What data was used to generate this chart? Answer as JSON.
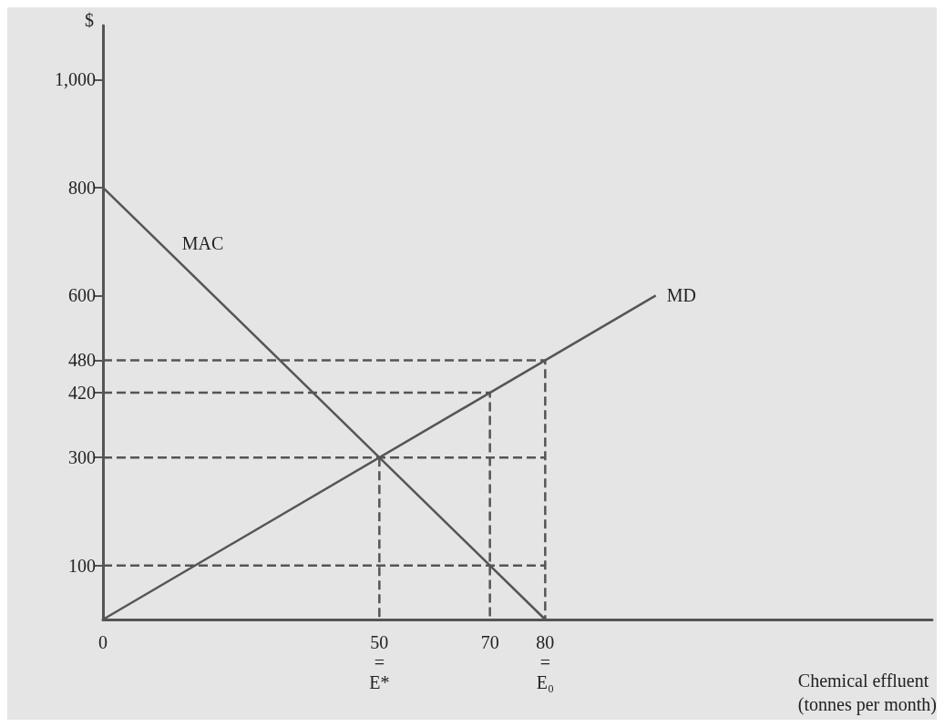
{
  "chart_data": {
    "type": "line",
    "xlabel": "Chemical effluent\n(tonnes per month)",
    "ylabel": "$",
    "xlim": [
      0,
      150
    ],
    "ylim": [
      0,
      1100
    ],
    "xticks": [
      0,
      {
        "value": 50,
        "label": "50\n=\nE*"
      },
      70,
      {
        "value": 80,
        "label": "80\n=\nE₀"
      }
    ],
    "yticks": [
      100,
      300,
      420,
      480,
      600,
      800,
      {
        "value": 1000,
        "label": "1,000"
      }
    ],
    "grid": false,
    "legend": false,
    "series": [
      {
        "name": "MAC",
        "color": "#555555",
        "line_style": "solid",
        "x": [
          0,
          80
        ],
        "values": [
          800,
          0
        ]
      },
      {
        "name": "MD",
        "color": "#555555",
        "line_style": "solid",
        "x": [
          0,
          100
        ],
        "values": [
          0,
          600
        ]
      },
      {
        "color": "#555555",
        "line_style": "dashed",
        "x": [
          0,
          80,
          80
        ],
        "values": [
          480,
          480,
          0
        ]
      },
      {
        "color": "#555555",
        "line_style": "dashed",
        "x": [
          0,
          70,
          70
        ],
        "values": [
          420,
          420,
          0
        ]
      },
      {
        "color": "#555555",
        "line_style": "dashed",
        "x": [
          0,
          80
        ],
        "values": [
          300,
          300
        ]
      },
      {
        "color": "#555555",
        "line_style": "dashed",
        "x": [
          50,
          50
        ],
        "values": [
          300,
          0
        ]
      },
      {
        "color": "#555555",
        "line_style": "dashed",
        "x": [
          0,
          80
        ],
        "values": [
          100,
          100
        ]
      }
    ]
  }
}
